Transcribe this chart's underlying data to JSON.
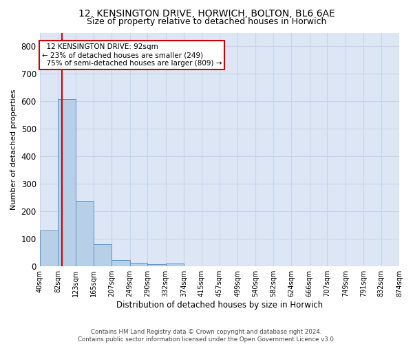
{
  "title": "12, KENSINGTON DRIVE, HORWICH, BOLTON, BL6 6AE",
  "subtitle": "Size of property relative to detached houses in Horwich",
  "xlabel": "Distribution of detached houses by size in Horwich",
  "ylabel": "Number of detached properties",
  "footer_line1": "Contains HM Land Registry data © Crown copyright and database right 2024.",
  "footer_line2": "Contains public sector information licensed under the Open Government Licence v3.0.",
  "bin_edges": [
    40,
    82,
    123,
    165,
    207,
    249,
    290,
    332,
    374,
    415,
    457,
    499,
    540,
    582,
    624,
    666,
    707,
    749,
    791,
    832,
    874
  ],
  "bar_heights": [
    130,
    608,
    238,
    80,
    22,
    12,
    9,
    10,
    0,
    0,
    0,
    0,
    0,
    0,
    0,
    0,
    0,
    0,
    0,
    0
  ],
  "bar_color": "#b8cfe8",
  "bar_edge_color": "#6090c0",
  "property_size": 92,
  "property_label": "12 KENSINGTON DRIVE: 92sqm",
  "pct_smaller": "23% of detached houses are smaller (249)",
  "pct_larger": "75% of semi-detached houses are larger (809)",
  "ylim": [
    0,
    850
  ],
  "yticks": [
    0,
    100,
    200,
    300,
    400,
    500,
    600,
    700,
    800
  ],
  "grid_color": "#c8d4e8",
  "background_color": "#dce6f5",
  "red_color": "#cc0000",
  "title_fontsize": 10,
  "subtitle_fontsize": 9,
  "tick_label_fontsize": 7,
  "ylabel_fontsize": 8,
  "xlabel_fontsize": 8.5
}
